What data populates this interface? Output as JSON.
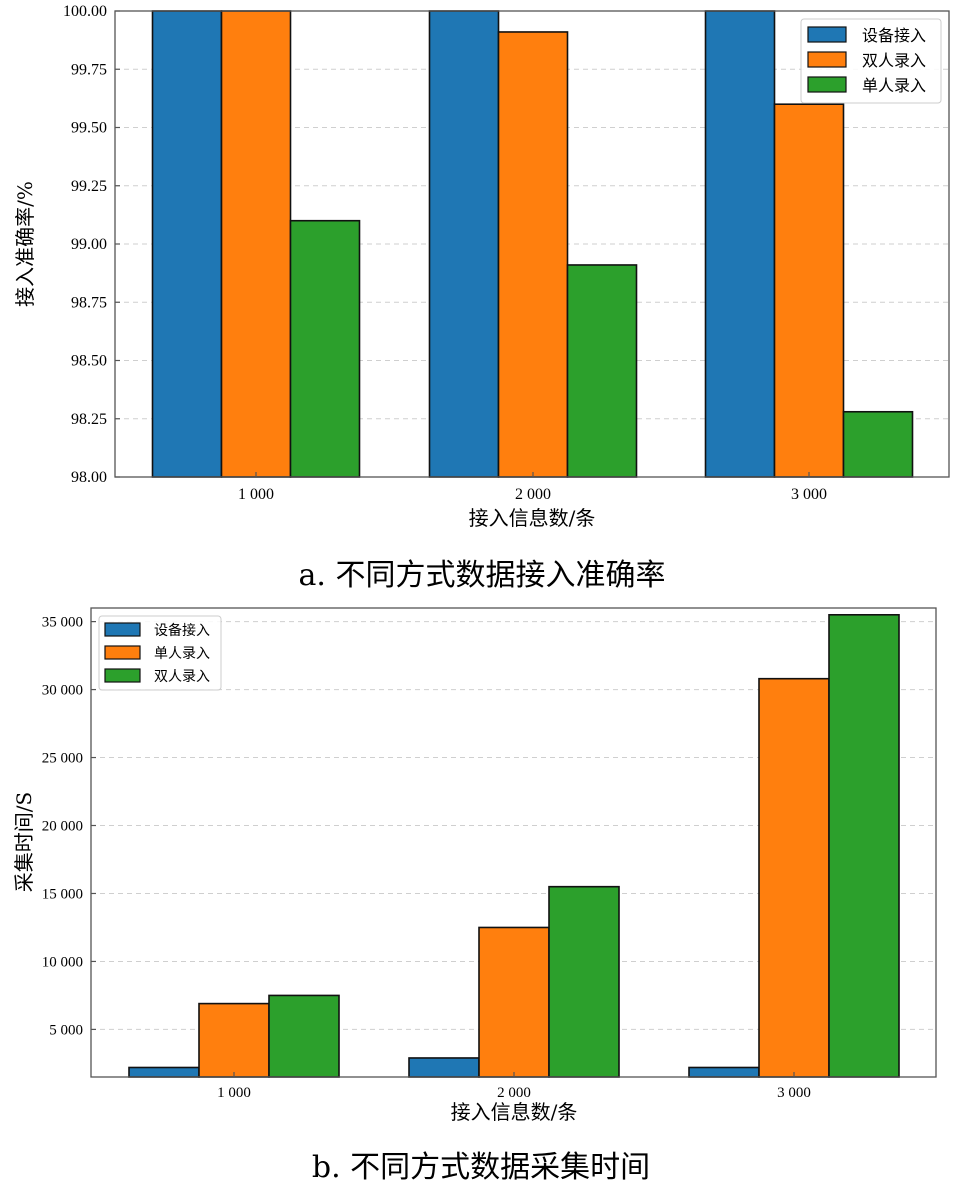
{
  "chart_data": [
    {
      "type": "bar",
      "caption": "a. 不同方式数据接入准确率",
      "xlabel": "接入信息数/条",
      "ylabel": "接入准确率/%",
      "categories": [
        "1 000",
        "2 000",
        "3 000"
      ],
      "ylim": [
        98.0,
        100.0
      ],
      "yticks": [
        "98.00",
        "98.25",
        "98.50",
        "98.75",
        "99.00",
        "99.25",
        "99.50",
        "99.75",
        "100.00"
      ],
      "ytick_values": [
        98.0,
        98.25,
        98.5,
        98.75,
        99.0,
        99.25,
        99.5,
        99.75,
        100.0
      ],
      "grid": "y-dashed",
      "legend_position": "top-right",
      "series": [
        {
          "name": "设备接入",
          "color": "#1f77b4",
          "values": [
            100.0,
            100.0,
            100.0
          ]
        },
        {
          "name": "双人录入",
          "color": "#ff7f0e",
          "values": [
            100.0,
            99.91,
            99.6
          ]
        },
        {
          "name": "单人录入",
          "color": "#2ca02c",
          "values": [
            99.1,
            98.91,
            98.28
          ]
        }
      ]
    },
    {
      "type": "bar",
      "caption": "b. 不同方式数据采集时间",
      "xlabel": "接入信息数/条",
      "ylabel": "采集时间/S",
      "categories": [
        "1 000",
        "2 000",
        "3 000"
      ],
      "ylim": [
        1500,
        36000
      ],
      "yticks": [
        "5 000",
        "10 000",
        "15 000",
        "20 000",
        "25 000",
        "30 000",
        "35 000"
      ],
      "ytick_values": [
        5000,
        10000,
        15000,
        20000,
        25000,
        30000,
        35000
      ],
      "grid": "y-dashed",
      "legend_position": "top-left",
      "series": [
        {
          "name": "设备接入",
          "color": "#1f77b4",
          "values": [
            2200,
            2900,
            2200
          ]
        },
        {
          "name": "单人录入",
          "color": "#ff7f0e",
          "values": [
            6900,
            12500,
            30800
          ]
        },
        {
          "name": "双人录入",
          "color": "#2ca02c",
          "values": [
            7500,
            15500,
            35500
          ]
        }
      ]
    }
  ]
}
